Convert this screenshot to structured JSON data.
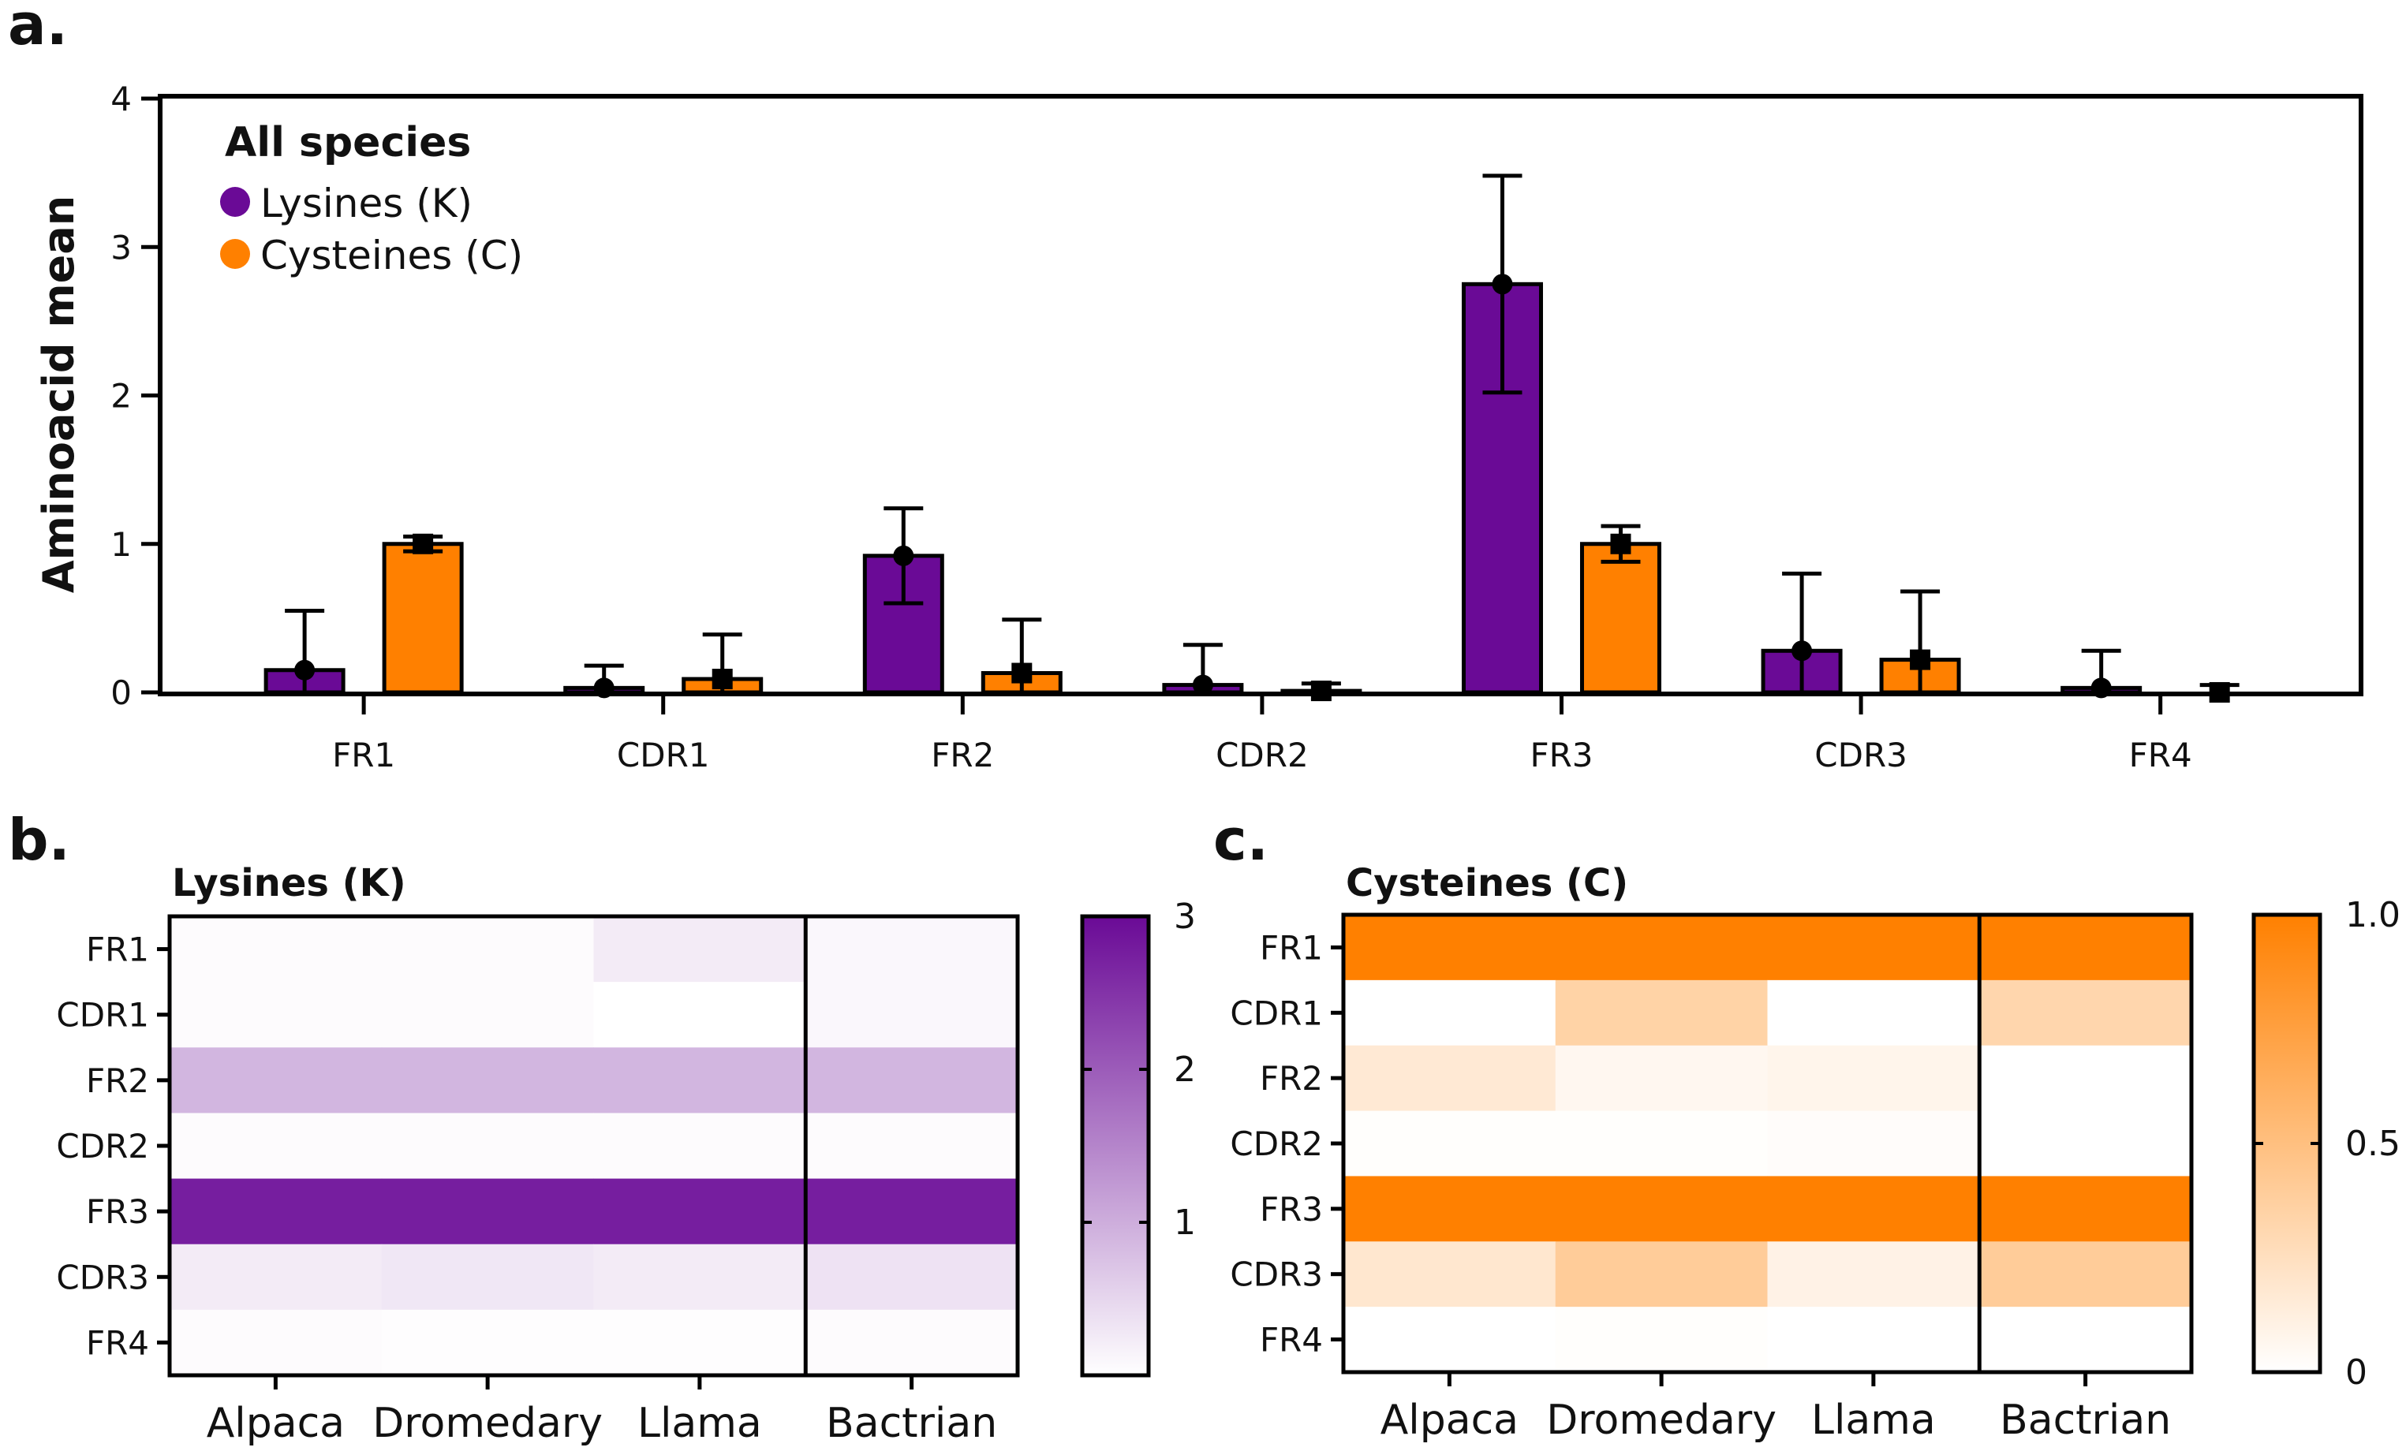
{
  "chart_data": [
    {
      "panel": "a.",
      "type": "bar",
      "title": "All species",
      "xlabel": "",
      "ylabel": "Aminoacid mean",
      "ylim": [
        0,
        4
      ],
      "yticks": [
        0,
        1,
        2,
        3,
        4
      ],
      "legend_position": "top-left",
      "categories": [
        "FR1",
        "CDR1",
        "FR2",
        "CDR2",
        "FR3",
        "CDR3",
        "FR4"
      ],
      "series": [
        {
          "name": "Lysines (K)",
          "color": "#6a0a96",
          "values": [
            0.15,
            0.03,
            0.92,
            0.05,
            2.75,
            0.28,
            0.03
          ],
          "errors": [
            0.4,
            0.15,
            0.32,
            0.27,
            0.73,
            0.52,
            0.25
          ]
        },
        {
          "name": "Cysteines (C)",
          "color": "#ff8000",
          "values": [
            1.0,
            0.09,
            0.13,
            0.01,
            1.0,
            0.22,
            0.0
          ],
          "errors": [
            0.05,
            0.3,
            0.36,
            0.05,
            0.12,
            0.46,
            0.05
          ]
        }
      ]
    },
    {
      "panel": "b.",
      "type": "heatmap",
      "title": "Lysines (K)",
      "rows": [
        "FR1",
        "CDR1",
        "FR2",
        "CDR2",
        "FR3",
        "CDR3",
        "FR4"
      ],
      "columns": [
        "Alpaca",
        "Dromedary",
        "Llama",
        "Bactrian"
      ],
      "values": [
        [
          0.05,
          0.05,
          0.25,
          0.1
        ],
        [
          0.05,
          0.05,
          0.0,
          0.1
        ],
        [
          0.9,
          0.9,
          0.9,
          0.9
        ],
        [
          0.05,
          0.05,
          0.05,
          0.05
        ],
        [
          2.75,
          2.75,
          2.75,
          2.75
        ],
        [
          0.25,
          0.3,
          0.25,
          0.35
        ],
        [
          0.05,
          0.03,
          0.03,
          0.05
        ]
      ],
      "colorbar": {
        "min": 0,
        "max": 3,
        "ticks": [
          1,
          2,
          3
        ],
        "color_low": "#ffffff",
        "color_high": "#6a0a96"
      }
    },
    {
      "panel": "c.",
      "type": "heatmap",
      "title": "Cysteines (C)",
      "rows": [
        "FR1",
        "CDR1",
        "FR2",
        "CDR2",
        "FR3",
        "CDR3",
        "FR4"
      ],
      "columns": [
        "Alpaca",
        "Dromedary",
        "Llama",
        "Bactrian"
      ],
      "values": [
        [
          1.0,
          1.0,
          1.0,
          1.0
        ],
        [
          0.0,
          0.35,
          0.0,
          0.32
        ],
        [
          0.17,
          0.06,
          0.08,
          0.0
        ],
        [
          0.01,
          0.01,
          0.02,
          0.0
        ],
        [
          1.0,
          1.0,
          1.0,
          1.0
        ],
        [
          0.19,
          0.4,
          0.1,
          0.4
        ],
        [
          0.0,
          0.01,
          0.0,
          0.0
        ]
      ],
      "colorbar": {
        "min": 0,
        "max": 1.0,
        "ticks": [
          "0",
          "0.5",
          "1.0"
        ],
        "color_low": "#ffffff",
        "color_high": "#ff8000"
      }
    }
  ]
}
